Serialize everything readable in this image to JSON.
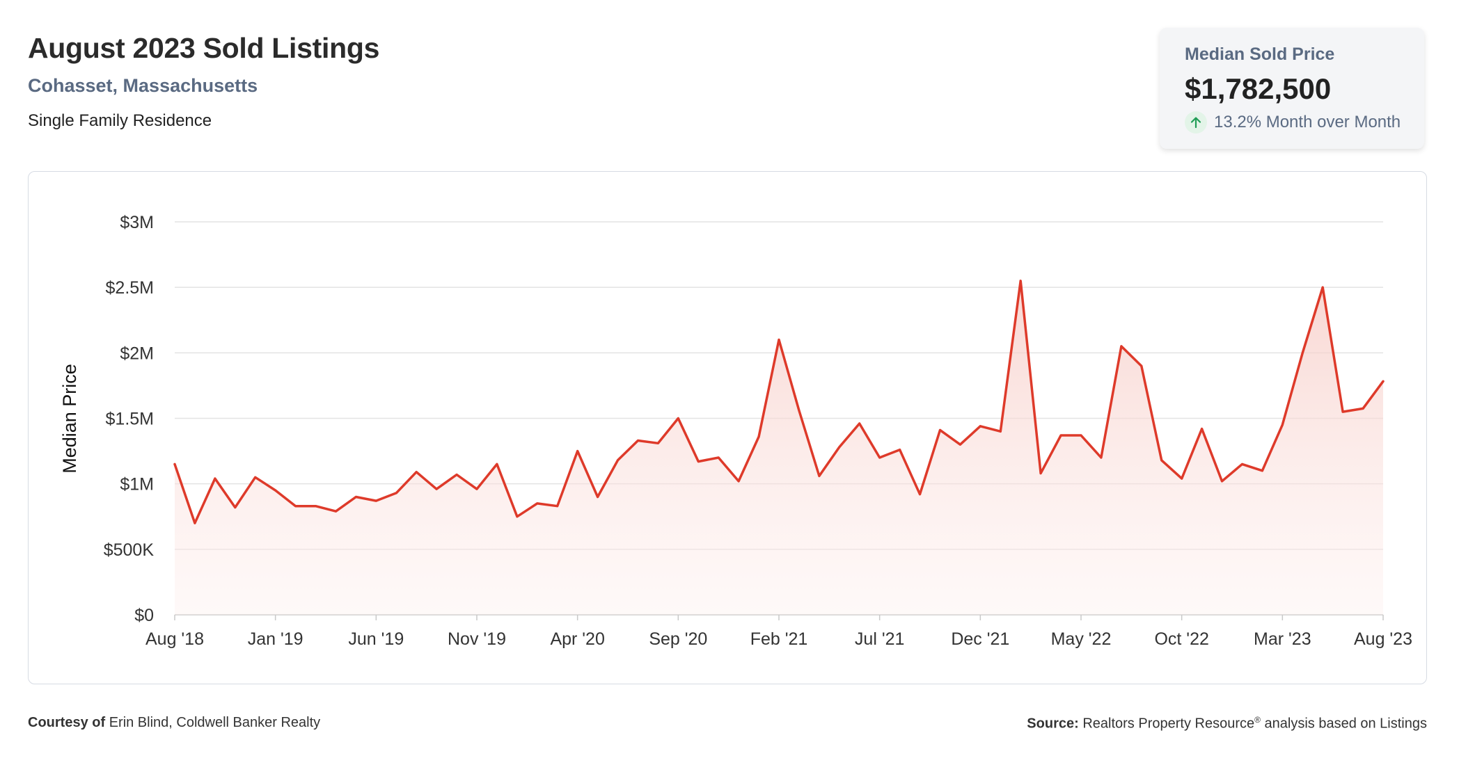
{
  "header": {
    "title": "August 2023 Sold Listings",
    "location": "Cohasset, Massachusetts",
    "property_type": "Single Family Residence"
  },
  "stat_card": {
    "label": "Median Sold Price",
    "value": "$1,782,500",
    "change": "13.2% Month over Month",
    "icon": "arrow-up-icon",
    "icon_color": "#1f9d55"
  },
  "footer": {
    "courtesy_prefix": "Courtesy of",
    "courtesy_name": "Erin Blind, Coldwell Banker Realty",
    "source_prefix": "Source:",
    "source_name": "Realtors Property Resource",
    "source_mark": "®",
    "source_suffix": "analysis based on Listings"
  },
  "colors": {
    "line": "#de3a2a",
    "fill_top": "#f6c9c3",
    "grid": "#e3e3e3",
    "axis_text": "#333333"
  },
  "chart_data": {
    "type": "area",
    "title": "",
    "xlabel": "",
    "ylabel": "Median Price",
    "ylim": [
      0,
      3000000
    ],
    "yticks": [
      0,
      500000,
      1000000,
      1500000,
      2000000,
      2500000,
      3000000
    ],
    "ytick_labels": [
      "$0",
      "$500K",
      "$1M",
      "$1.5M",
      "$2M",
      "$2.5M",
      "$3M"
    ],
    "xtick_labels": [
      "Aug '18",
      "Jan '19",
      "Jun '19",
      "Nov '19",
      "Apr '20",
      "Sep '20",
      "Feb '21",
      "Jul '21",
      "Dec '21",
      "May '22",
      "Oct '22",
      "Mar '23",
      "Aug '23"
    ],
    "xtick_every": 5,
    "grid": true,
    "legend": "none",
    "series": [
      {
        "values": [
          1150000,
          700000,
          1040000,
          820000,
          1050000,
          950000,
          830000,
          830000,
          790000,
          900000,
          870000,
          930000,
          1090000,
          960000,
          1070000,
          960000,
          1150000,
          750000,
          850000,
          830000,
          1250000,
          900000,
          1180000,
          1330000,
          1310000,
          1500000,
          1170000,
          1200000,
          1020000,
          1360000,
          2100000,
          1560000,
          1060000,
          1280000,
          1460000,
          1200000,
          1260000,
          920000,
          1410000,
          1300000,
          1440000,
          1400000,
          2550000,
          1080000,
          1370000,
          1370000,
          1200000,
          2050000,
          1900000,
          1180000,
          1040000,
          1420000,
          1020000,
          1150000,
          1100000,
          1450000,
          2000000,
          2500000,
          1550000,
          1575000,
          1782500
        ]
      }
    ]
  }
}
